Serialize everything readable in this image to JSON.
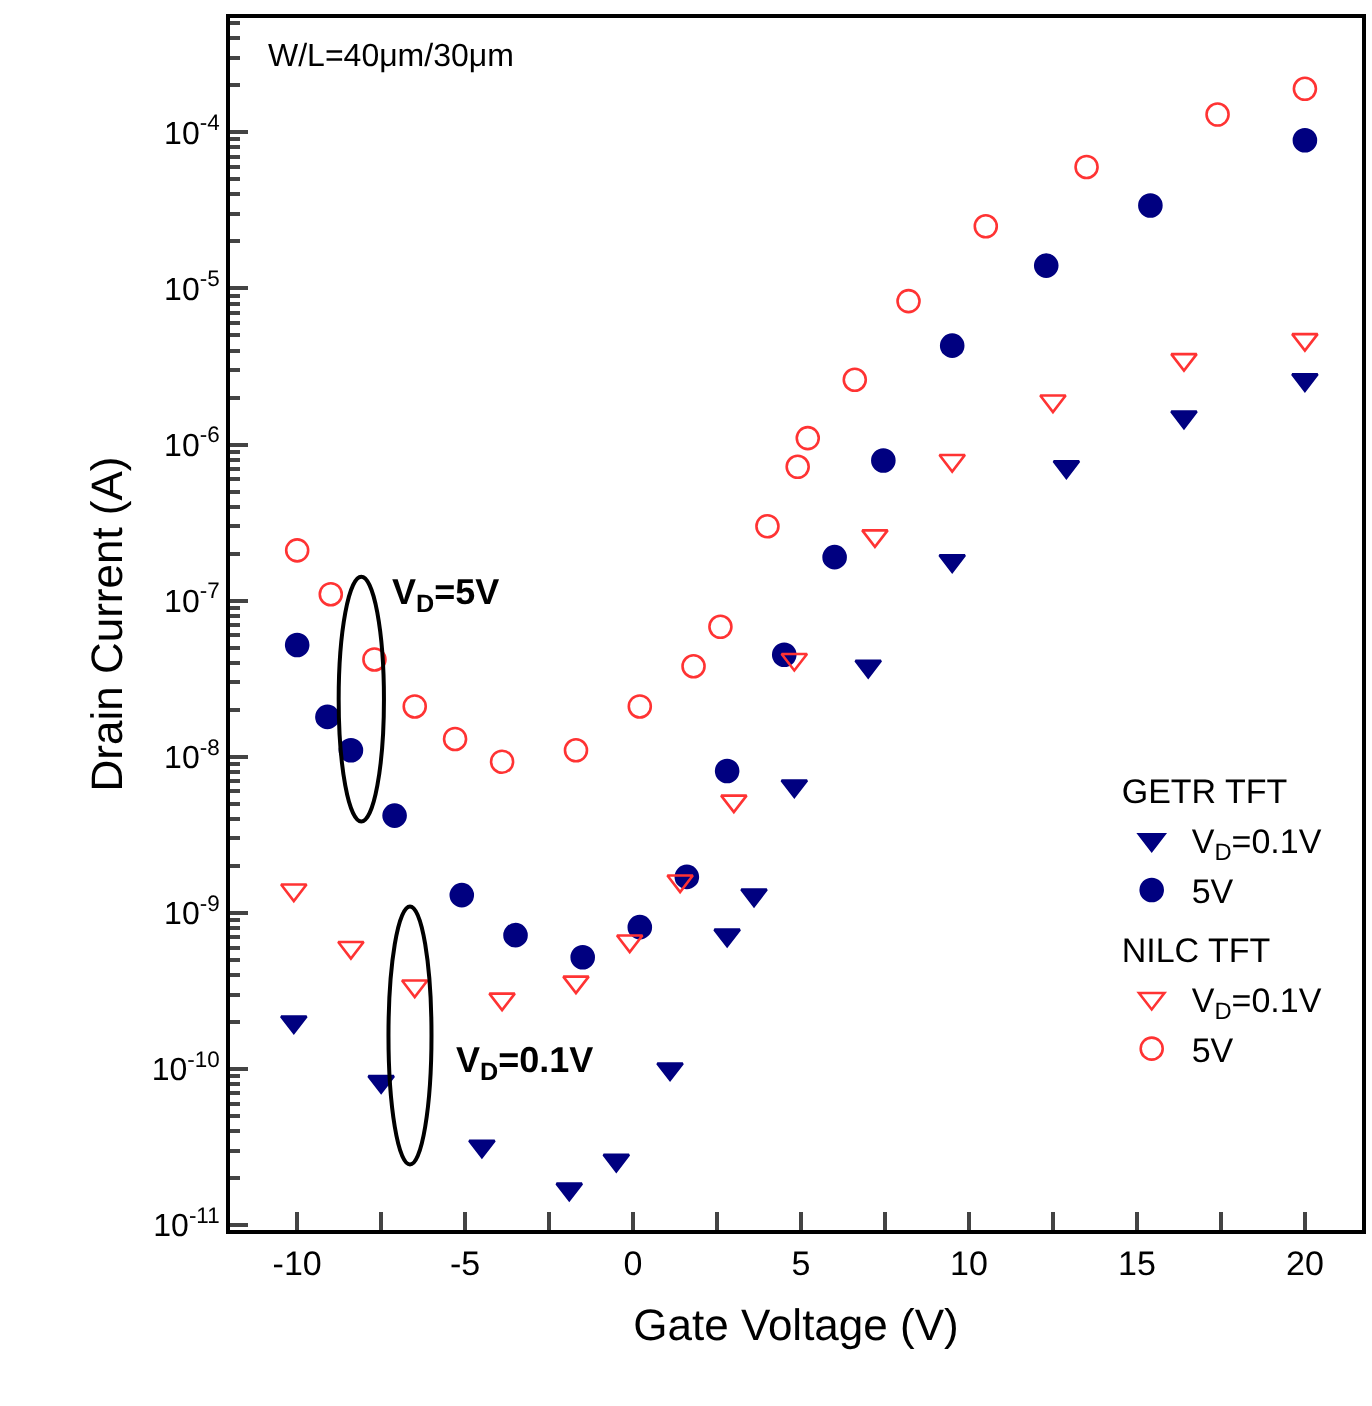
{
  "chart_data": {
    "type": "scatter",
    "xlabel": "Gate Voltage (V)",
    "ylabel": "Drain Current (A)",
    "annotations": [
      "W/L=40μm/30μm",
      "GETR TFT",
      "NILC TFT",
      "V$_{D}$=5V",
      "V$_{D}$=0.1V"
    ],
    "log": "y",
    "xlim": [
      -12,
      21.7
    ],
    "ylim": [
      9.3e-12,
      0.00054
    ],
    "xticks": [
      -10,
      {
        "value": -7.5,
        "label": null
      },
      -5,
      {
        "value": -2.5,
        "label": null
      },
      0,
      {
        "value": 2.5,
        "label": null
      },
      5,
      {
        "value": 7.5,
        "label": null
      },
      10,
      {
        "value": 12.5,
        "label": null
      },
      15,
      {
        "value": 17.5,
        "label": null
      },
      20
    ],
    "yticks": [
      {
        "value": 1e-11,
        "label": "10$^{-11}$"
      },
      {
        "value": 1e-10,
        "label": "10$^{-10}$"
      },
      {
        "value": 1e-09,
        "label": "10$^{-9}$"
      },
      {
        "value": 1e-08,
        "label": "10$^{-8}$"
      },
      {
        "value": 1e-07,
        "label": "10$^{-7}$"
      },
      {
        "value": 1e-06,
        "label": "10$^{-6}$"
      },
      {
        "value": 1e-05,
        "label": "10$^{-5}$"
      },
      {
        "value": 0.0001,
        "label": "10$^{-4}$"
      }
    ],
    "legend": "bottom right",
    "series": [
      {
        "name": "V$_{D}$=0.1V",
        "color": "#000080",
        "marker": "triangle",
        "x": [
          -10.1,
          -7.5,
          -4.5,
          -1.9,
          -0.5,
          1.1,
          2.8,
          3.6,
          4.8,
          7.0,
          9.5,
          12.9,
          16.4,
          20.0
        ],
        "values": [
          2e-10,
          8.3e-11,
          3.2e-11,
          1.7e-11,
          2.6e-11,
          1e-10,
          7.2e-10,
          1.3e-09,
          6.5e-09,
          3.8e-08,
          1.8e-07,
          7.2e-07,
          1.5e-06,
          2.6e-06
        ]
      },
      {
        "name": "5V",
        "color": "#000080",
        "marker": "circle",
        "x": [
          -10,
          -9.1,
          -8.4,
          -7.1,
          -5.1,
          -3.5,
          -1.5,
          0.2,
          1.6,
          2.8,
          4.5,
          6.0,
          7.45,
          9.5,
          12.3,
          15.4,
          20.0
        ],
        "values": [
          5.2e-08,
          1.8e-08,
          1.1e-08,
          4.2e-09,
          1.3e-09,
          7.2e-10,
          5.2e-10,
          8.1e-10,
          1.7e-09,
          8.1e-09,
          4.5e-08,
          1.9e-07,
          7.9e-07,
          4.3e-06,
          1.4e-05,
          3.4e-05,
          8.9e-05
        ]
      },
      {
        "name": "V$_{D}$=0.1V",
        "color": "#ff3333",
        "marker": "triangle-open",
        "x": [
          -10.1,
          -8.4,
          -6.5,
          -3.9,
          -1.7,
          -0.1,
          1.4,
          3.0,
          4.8,
          7.2,
          9.5,
          12.5,
          16.4,
          20.0
        ],
        "values": [
          1.4e-09,
          6e-10,
          3.4e-10,
          2.8e-10,
          3.6e-10,
          6.6e-10,
          1.6e-09,
          5.2e-09,
          4.2e-08,
          2.6e-07,
          7.9e-07,
          1.9e-06,
          3.5e-06,
          4.7e-06
        ]
      },
      {
        "name": "5V",
        "color": "#ff3333",
        "marker": "circle-open",
        "x": [
          -10,
          -9.0,
          -7.7,
          -6.5,
          -5.3,
          -3.9,
          -1.7,
          0.2,
          1.8,
          2.6,
          4.0,
          4.9,
          5.2,
          6.6,
          8.2,
          10.5,
          13.5,
          17.4,
          20.0
        ],
        "values": [
          2.1e-07,
          1.1e-07,
          4.2e-08,
          2.1e-08,
          1.3e-08,
          9.3e-09,
          1.1e-08,
          2.1e-08,
          3.8e-08,
          6.8e-08,
          3e-07,
          7.2e-07,
          1.1e-06,
          2.6e-06,
          8.3e-06,
          2.5e-05,
          6e-05,
          0.00013,
          0.00019
        ]
      }
    ]
  }
}
